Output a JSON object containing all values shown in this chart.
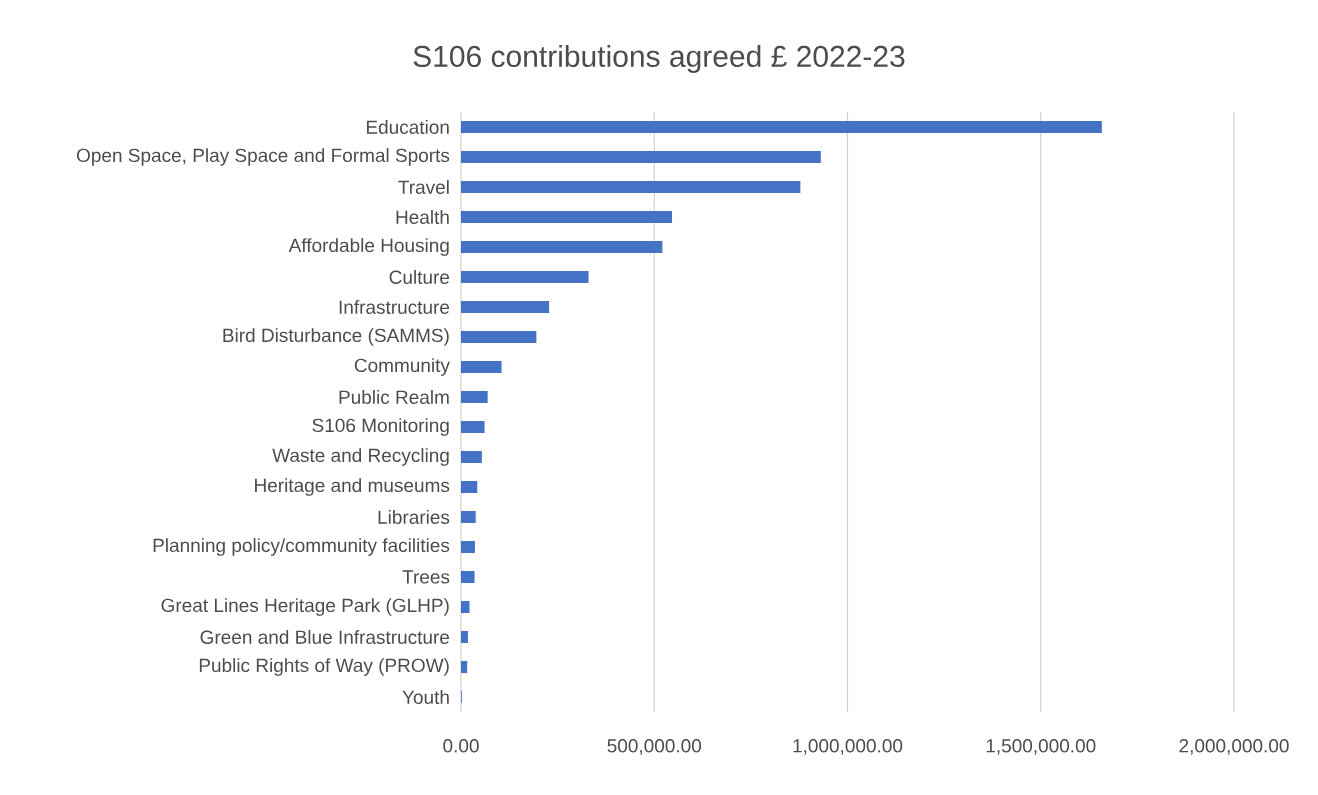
{
  "chart_data": {
    "type": "bar",
    "orientation": "horizontal",
    "title": "S106 contributions agreed £ 2022-23",
    "categories": [
      "Education",
      "Open Space, Play Space and Formal Sports",
      "Travel",
      "Health",
      "Affordable Housing",
      "Culture",
      "Infrastructure",
      "Bird Disturbance (SAMMS)",
      "Community",
      "Public Realm",
      "S106 Monitoring",
      "Waste and Recycling",
      "Heritage and museums",
      "Libraries",
      "Planning policy/community facilities",
      "Trees",
      "Great Lines Heritage Park (GLHP)",
      "Green and Blue Infrastructure",
      "Public Rights of Way (PROW)",
      "Youth"
    ],
    "values": [
      1658000,
      931000,
      878000,
      546000,
      521000,
      330000,
      228000,
      195000,
      105000,
      69000,
      61000,
      54000,
      42000,
      38000,
      36000,
      35000,
      22000,
      18000,
      16000,
      2000
    ],
    "color": "#4472c4",
    "xlim": [
      0,
      2000000
    ],
    "xticks": [
      {
        "value": 0,
        "label": "0.00"
      },
      {
        "value": 500000,
        "label": "500,000.00"
      },
      {
        "value": 1000000,
        "label": "1,000,000.00"
      },
      {
        "value": 1500000,
        "label": "1,500,000.00"
      },
      {
        "value": 2000000,
        "label": "2,000,000.00"
      }
    ],
    "grid": "x"
  }
}
